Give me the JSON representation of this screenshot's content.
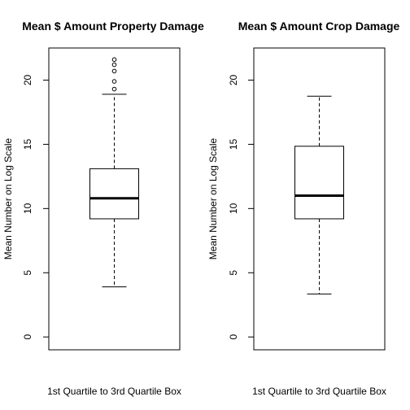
{
  "chart_data": [
    {
      "type": "boxplot",
      "title": "Mean $ Amount Property Damage",
      "xlabel": "1st Quartile to 3rd Quartile Box",
      "ylabel": "Mean Number on Log Scale",
      "ylim": [
        -1,
        22.5
      ],
      "yticks": [
        0,
        5,
        10,
        15,
        20
      ],
      "box": {
        "whisker_low": 3.9,
        "q1": 9.2,
        "median": 10.8,
        "q3": 13.1,
        "whisker_high": 18.9
      },
      "outliers": [
        19.3,
        19.9,
        20.7,
        21.2,
        21.6
      ],
      "grid": false
    },
    {
      "type": "boxplot",
      "title": "Mean $ Amount Crop Damage",
      "xlabel": "1st Quartile to 3rd Quartile Box",
      "ylabel": "Mean Number on Log Scale",
      "ylim": [
        -1,
        22.5
      ],
      "yticks": [
        0,
        5,
        10,
        15,
        20
      ],
      "box": {
        "whisker_low": 3.35,
        "q1": 9.2,
        "median": 11.0,
        "q3": 14.85,
        "whisker_high": 18.75
      },
      "outliers": [],
      "grid": false
    }
  ]
}
